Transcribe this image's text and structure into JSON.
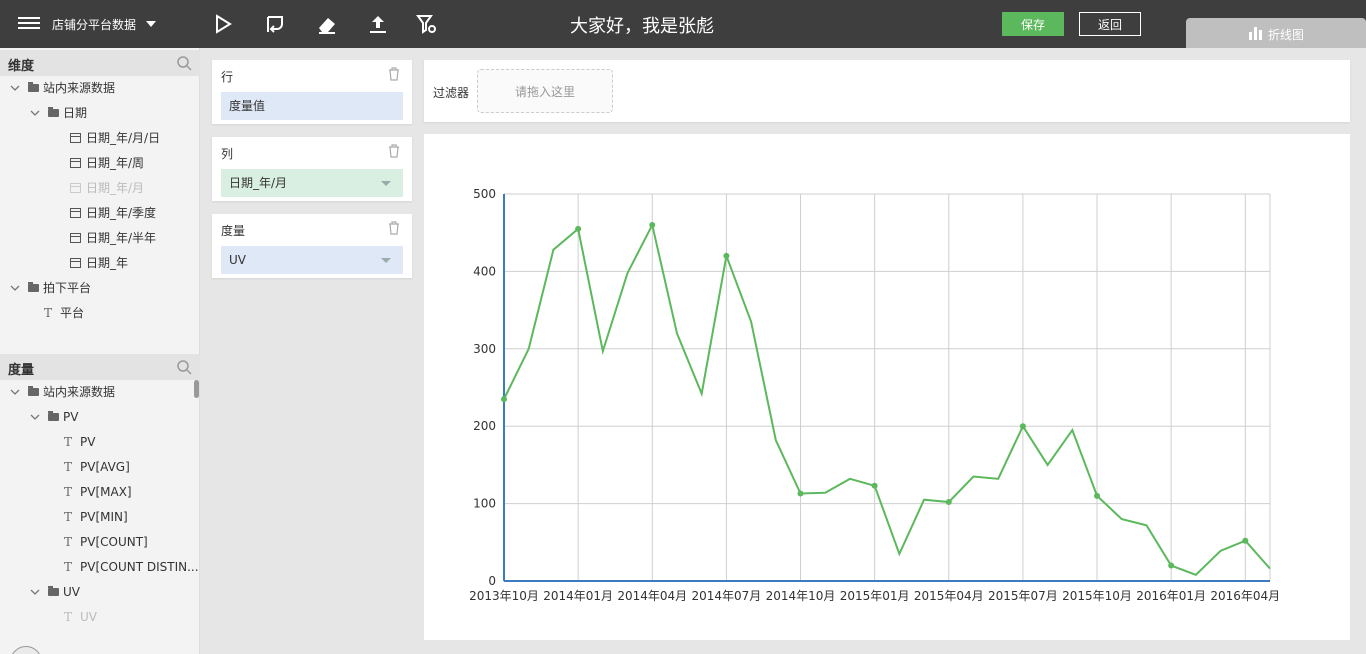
{
  "topbar": {
    "sheet_name": "店铺分平台数据",
    "title": "大家好，我是张彪",
    "save_label": "保存",
    "back_label": "返回",
    "chart_type_label": "折线图",
    "tools": [
      "play-icon",
      "swap-icon",
      "eraser-icon",
      "upload-icon",
      "filter-settings-icon"
    ]
  },
  "dimensions": {
    "header": "维度",
    "items": [
      {
        "label": "站内来源数据",
        "kind": "folder",
        "level": 0
      },
      {
        "label": "日期",
        "kind": "folder",
        "level": 1
      },
      {
        "label": "日期_年/月/日",
        "kind": "date",
        "level": 2
      },
      {
        "label": "日期_年/周",
        "kind": "date",
        "level": 2
      },
      {
        "label": "日期_年/月",
        "kind": "date",
        "level": 2,
        "disabled": true
      },
      {
        "label": "日期_年/季度",
        "kind": "date",
        "level": 2
      },
      {
        "label": "日期_年/半年",
        "kind": "date",
        "level": 2
      },
      {
        "label": "日期_年",
        "kind": "date",
        "level": 2
      },
      {
        "label": "拍下平台",
        "kind": "folder",
        "level": 0
      },
      {
        "label": "平台",
        "kind": "text",
        "level": 1
      }
    ]
  },
  "measures": {
    "header": "度量",
    "items": [
      {
        "label": "站内来源数据",
        "kind": "folder",
        "level": 0
      },
      {
        "label": "PV",
        "kind": "folder",
        "level": 1
      },
      {
        "label": "PV",
        "kind": "text",
        "level": 2
      },
      {
        "label": "PV[AVG]",
        "kind": "text",
        "level": 2
      },
      {
        "label": "PV[MAX]",
        "kind": "text",
        "level": 2
      },
      {
        "label": "PV[MIN]",
        "kind": "text",
        "level": 2
      },
      {
        "label": "PV[COUNT]",
        "kind": "text",
        "level": 2
      },
      {
        "label": "PV[COUNT DISTIN...",
        "kind": "text",
        "level": 2
      },
      {
        "label": "UV",
        "kind": "folder",
        "level": 1
      },
      {
        "label": "UV",
        "kind": "text",
        "level": 2,
        "disabled": true
      }
    ]
  },
  "shelves": {
    "rows": {
      "label": "行",
      "pill": "度量值"
    },
    "columns": {
      "label": "列",
      "pill": "日期_年/月"
    },
    "measure": {
      "label": "度量",
      "pill": "UV"
    }
  },
  "filter": {
    "label": "过滤器",
    "placeholder": "请拖入这里"
  },
  "colors": {
    "line": "#5cb85c",
    "axis": "#3b7bbf",
    "grid": "#cfcfcf"
  },
  "chart_data": {
    "type": "line",
    "x": [
      "2013年10月",
      "2013年11月",
      "2013年12月",
      "2014年01月",
      "2014年02月",
      "2014年03月",
      "2014年04月",
      "2014年05月",
      "2014年06月",
      "2014年07月",
      "2014年08月",
      "2014年09月",
      "2014年10月",
      "2014年11月",
      "2014年12月",
      "2015年01月",
      "2015年02月",
      "2015年03月",
      "2015年04月",
      "2015年05月",
      "2015年06月",
      "2015年07月",
      "2015年08月",
      "2015年09月",
      "2015年10月",
      "2015年11月",
      "2015年12月",
      "2016年01月",
      "2016年02月",
      "2016年03月",
      "2016年04月",
      "2016年05月"
    ],
    "series": [
      {
        "values": [
          235,
          300,
          428,
          455,
          297,
          398,
          460,
          320,
          242,
          420,
          335,
          182,
          113,
          114,
          132,
          123,
          35,
          105,
          102,
          135,
          132,
          200,
          150,
          195,
          110,
          80,
          72,
          20,
          8,
          39,
          52,
          16
        ]
      }
    ],
    "x_ticks": [
      "2013年10月",
      "2014年01月",
      "2014年04月",
      "2014年07月",
      "2014年10月",
      "2015年01月",
      "2015年04月",
      "2015年07月",
      "2015年10月",
      "2016年01月",
      "2016年04月"
    ],
    "y_ticks": [
      0,
      100,
      200,
      300,
      400,
      500
    ],
    "ylim": [
      0,
      500
    ],
    "marker_every": 3,
    "grid": true
  }
}
